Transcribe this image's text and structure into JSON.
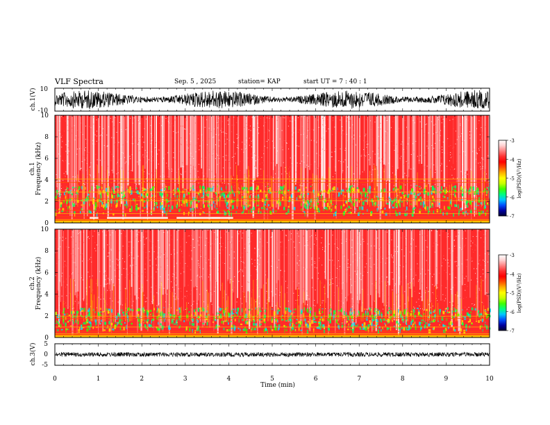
{
  "header": {
    "title": "VLF Spectra",
    "date": "Sep. 5 , 2025",
    "station": "station= KAP",
    "start": "start  UT =   7 : 40 : 1"
  },
  "colorbar_colors": [
    "#000033",
    "#0000a0",
    "#0050ff",
    "#00c8ff",
    "#00ff80",
    "#40ff00",
    "#c8ff00",
    "#ffff00",
    "#ffb000",
    "#ff5000",
    "#ff0000",
    "#ff3030",
    "#ff8080",
    "#ffd0d0",
    "#ffffff"
  ],
  "chart_data": [
    {
      "type": "line",
      "panel": "waveform-ch1",
      "ylabel": "ch.1(V)",
      "ylim": [
        -10,
        10
      ],
      "yticks": [
        "10",
        "-10"
      ],
      "xlim": [
        0,
        10
      ]
    },
    {
      "type": "heatmap",
      "panel": "spectrogram-ch1",
      "ylabel": "ch.1 Frequency (kHz)",
      "ylabel_ch": "ch.1",
      "ylabel_freq": "Frequency (kHz)",
      "ylim": [
        0,
        10
      ],
      "yticks": [
        "10",
        "8",
        "6",
        "4",
        "2",
        "0"
      ],
      "xlim": [
        0,
        10
      ],
      "colorbar": {
        "label": "log(PSD)(V²/Hz)",
        "range": [
          -7,
          -3
        ],
        "ticks": [
          "-3",
          "-4",
          "-5",
          "-6",
          "-7"
        ]
      }
    },
    {
      "type": "heatmap",
      "panel": "spectrogram-ch2",
      "ylabel": "ch.2 Frequency (kHz)",
      "ylabel_ch": "ch.2",
      "ylabel_freq": "Frequency (kHz)",
      "ylim": [
        0,
        10
      ],
      "yticks": [
        "10",
        "8",
        "6",
        "4",
        "2",
        "0"
      ],
      "xlim": [
        0,
        10
      ],
      "colorbar": {
        "label": "log(PSD)(V²/Hz)",
        "range": [
          -7,
          -3
        ],
        "ticks": [
          "-3",
          "-4",
          "-5",
          "-6",
          "-7"
        ]
      }
    },
    {
      "type": "line",
      "panel": "waveform-ch3",
      "ylabel": "ch.3(V)",
      "ylim": [
        -5,
        5
      ],
      "yticks": [
        "5",
        "0",
        "-5"
      ],
      "xlim": [
        0,
        10
      ],
      "xlabel": "Time (min)",
      "xticks": [
        "0",
        "1",
        "2",
        "3",
        "4",
        "5",
        "6",
        "7",
        "8",
        "9",
        "10"
      ]
    }
  ]
}
